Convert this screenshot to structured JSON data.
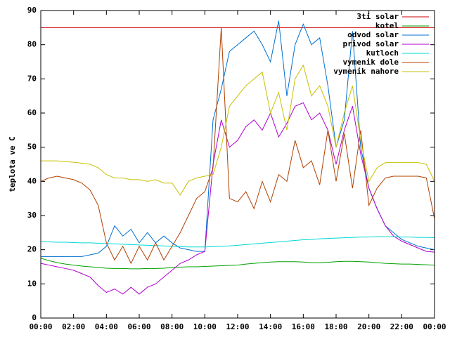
{
  "chart_data": {
    "type": "line",
    "y_label": "teplota ve C",
    "x": [
      0,
      0.5,
      1,
      1.5,
      2,
      2.5,
      3,
      3.5,
      4,
      4.5,
      5,
      5.5,
      6,
      6.5,
      7,
      7.5,
      8,
      8.5,
      9,
      9.5,
      10,
      10.5,
      11,
      11.5,
      12,
      12.5,
      13,
      13.5,
      14,
      14.5,
      15,
      15.5,
      16,
      16.5,
      17,
      17.5,
      18,
      18.5,
      19,
      19.5,
      20,
      20.5,
      21,
      21.5,
      22,
      22.5,
      23,
      23.5,
      24
    ],
    "xlim": [
      0,
      24
    ],
    "xticks": [
      {
        "value": 0,
        "label": "00:00"
      },
      {
        "value": 2,
        "label": "02:00"
      },
      {
        "value": 4,
        "label": "04:00"
      },
      {
        "value": 6,
        "label": "06:00"
      },
      {
        "value": 8,
        "label": "08:00"
      },
      {
        "value": 10,
        "label": "10:00"
      },
      {
        "value": 12,
        "label": "12:00"
      },
      {
        "value": 14,
        "label": "14:00"
      },
      {
        "value": 16,
        "label": "16:00"
      },
      {
        "value": 18,
        "label": "18:00"
      },
      {
        "value": 20,
        "label": "20:00"
      },
      {
        "value": 22,
        "label": "22:00"
      },
      {
        "value": 24,
        "label": "00:00"
      }
    ],
    "ylim": [
      0,
      90
    ],
    "yticks": [
      0,
      10,
      20,
      30,
      40,
      50,
      60,
      70,
      80,
      90
    ],
    "legend": "top-right",
    "series": [
      {
        "name": "3ti solar",
        "color": "#cc0000",
        "values": [
          85,
          85,
          85,
          85,
          85,
          85,
          85,
          85,
          85,
          85,
          85,
          85,
          85,
          85,
          85,
          85,
          85,
          85,
          85,
          85,
          85,
          85,
          85,
          85,
          85,
          85,
          85,
          85,
          85,
          85,
          85,
          85,
          85,
          85,
          85,
          85,
          85,
          85,
          85,
          85,
          85,
          85,
          85,
          85,
          85,
          85,
          85,
          85,
          85
        ]
      },
      {
        "name": "kotel",
        "color": "#00a000",
        "values": [
          17.5,
          16.8,
          16.2,
          15.8,
          15.5,
          15.2,
          15,
          14.8,
          14.6,
          14.5,
          14.5,
          14.4,
          14.4,
          14.5,
          14.5,
          14.6,
          14.8,
          14.9,
          15,
          15,
          15.1,
          15.2,
          15.3,
          15.4,
          15.5,
          15.8,
          16,
          16.2,
          16.4,
          16.5,
          16.5,
          16.5,
          16.4,
          16.2,
          16.2,
          16.3,
          16.5,
          16.6,
          16.6,
          16.5,
          16.4,
          16.2,
          16,
          15.9,
          15.8,
          15.8,
          15.7,
          15.6,
          15.5
        ]
      },
      {
        "name": "odvod solar",
        "color": "#0070d0",
        "values": [
          18,
          18,
          18,
          18,
          18,
          18,
          18.5,
          19,
          21,
          27,
          24,
          26,
          22,
          25,
          22,
          24,
          22,
          20.5,
          20,
          19.5,
          19.5,
          58,
          67,
          78,
          80,
          82,
          84,
          80,
          75,
          87,
          65,
          80,
          86,
          80,
          82,
          68,
          50,
          58,
          84,
          50,
          38,
          32,
          27,
          25,
          23,
          22,
          21,
          20.5,
          20
        ]
      },
      {
        "name": "privod solar",
        "color": "#b000d0",
        "values": [
          16,
          15.5,
          15,
          14.5,
          14,
          13,
          12,
          9.5,
          7.5,
          8.5,
          7,
          9,
          7,
          9,
          10,
          12,
          14,
          16,
          17,
          18.5,
          19.5,
          45,
          58,
          50,
          52,
          56,
          58,
          55,
          60,
          53,
          57,
          62,
          63,
          58,
          60,
          55,
          45,
          55,
          62,
          48,
          38,
          32,
          27,
          24,
          22.5,
          21.5,
          20.5,
          19.5,
          19.3
        ]
      },
      {
        "name": "kutloch",
        "color": "#00d8d8",
        "values": [
          22.3,
          22.3,
          22.2,
          22.2,
          22.1,
          22,
          22,
          21.9,
          21.8,
          21.7,
          21.6,
          21.5,
          21.4,
          21.3,
          21.2,
          21.1,
          21,
          20.9,
          20.8,
          20.8,
          20.8,
          20.9,
          21,
          21.1,
          21.3,
          21.5,
          21.7,
          21.9,
          22.1,
          22.3,
          22.5,
          22.7,
          22.9,
          23,
          23.2,
          23.3,
          23.4,
          23.5,
          23.6,
          23.7,
          23.7,
          23.8,
          23.8,
          23.8,
          23.7,
          23.7,
          23.6,
          23.6,
          23.5
        ]
      },
      {
        "name": "vymenik dole",
        "color": "#b04000",
        "values": [
          40,
          41,
          41.5,
          41,
          40.5,
          39.5,
          37.5,
          33,
          22,
          17,
          21,
          16,
          21,
          17,
          22,
          17,
          21,
          25,
          30,
          35,
          37,
          44,
          85,
          35,
          34,
          37,
          32,
          40,
          34,
          42,
          40,
          52,
          44,
          46,
          39,
          55,
          40,
          54,
          38,
          55,
          33,
          38,
          41,
          41.5,
          41.5,
          41.5,
          41.5,
          41,
          29
        ]
      },
      {
        "name": "vymenik nahore",
        "color": "#c8c000",
        "values": [
          46,
          46,
          46,
          45.8,
          45.6,
          45.3,
          45,
          44,
          42,
          41,
          41,
          40.5,
          40.5,
          40,
          40.5,
          39.5,
          39.5,
          36,
          40,
          41,
          41.5,
          42,
          50,
          62,
          65,
          68,
          70,
          72,
          60,
          66,
          55,
          70,
          74,
          65,
          68,
          62,
          50,
          60,
          68,
          52,
          40,
          44,
          45.5,
          45.5,
          45.5,
          45.5,
          45.5,
          45,
          40
        ]
      }
    ]
  }
}
